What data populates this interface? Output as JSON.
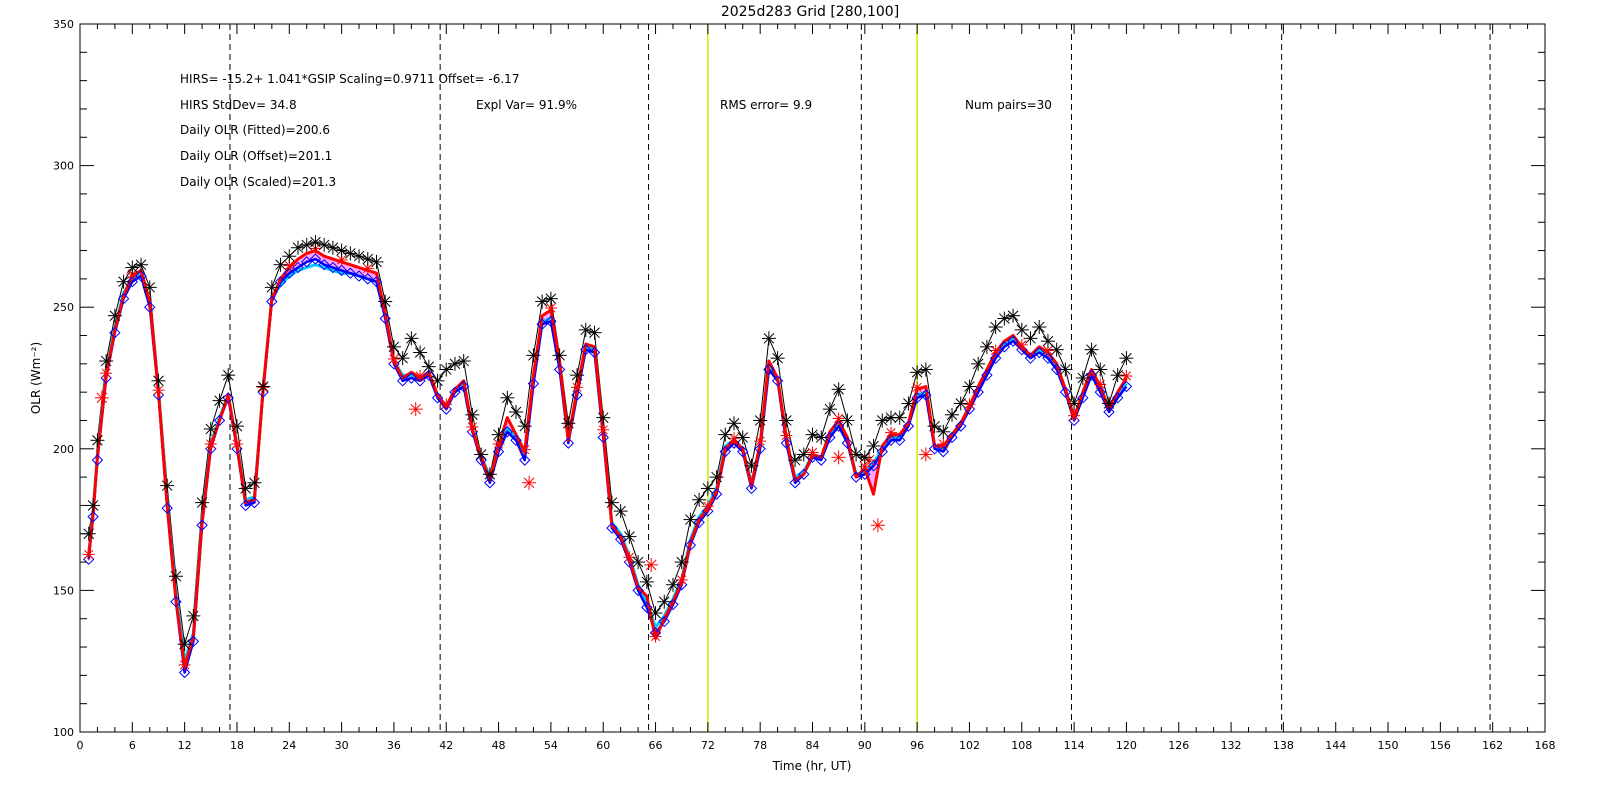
{
  "title": "2025d283 Grid [280,100]",
  "annotations": {
    "hirs_fit": "HIRS=  -15.2+  1.041*GSIP  Scaling=0.9711  Offset= -6.17",
    "hirs_stddev": "HIRS StdDev= 34.8",
    "expl_var": "Expl Var= 91.9%",
    "rms_error": "RMS error=  9.9",
    "num_pairs": "Num pairs=30",
    "daily_fitted": "Daily OLR (Fitted)=200.6",
    "daily_offset": "Daily OLR (Offset)=201.1",
    "daily_scaled": "Daily OLR (Scaled)=201.3"
  },
  "colors": {
    "hirs": "#000000",
    "gsip_scaled": "#0000ff",
    "gsip_offset": "#00ccff",
    "gsip_fitted": "#ff0000",
    "scaled_band": "#ff00ff",
    "reference_line": "#c8f000"
  },
  "chart_data": {
    "type": "line",
    "title": "2025d283 Grid [280,100]",
    "xlabel": "Time (hr, UT)",
    "ylabel": "OLR (Wm⁻²)",
    "xlim": [
      0,
      168
    ],
    "ylim": [
      100,
      350
    ],
    "x_ticks": [
      0,
      6,
      12,
      18,
      24,
      30,
      36,
      42,
      48,
      54,
      60,
      66,
      72,
      78,
      84,
      90,
      96,
      102,
      108,
      114,
      120,
      126,
      132,
      138,
      144,
      150,
      156,
      162,
      168
    ],
    "y_ticks": [
      100,
      150,
      200,
      250,
      300,
      350
    ],
    "dashed_vlines": [
      17.2,
      41.3,
      65.2,
      89.6,
      113.7,
      137.8,
      161.7
    ],
    "green_vlines": [
      72,
      96
    ],
    "x": [
      1,
      1.5,
      2,
      3,
      4,
      5,
      6,
      7,
      8,
      9,
      10,
      11,
      12,
      13,
      14,
      15,
      16,
      17,
      18,
      19,
      20,
      21,
      22,
      23,
      24,
      25,
      26,
      27,
      28,
      29,
      30,
      31,
      32,
      33,
      34,
      35,
      36,
      37,
      38,
      39,
      40,
      41,
      42,
      43,
      44,
      45,
      46,
      47,
      48,
      49,
      50,
      51,
      52,
      53,
      54,
      55,
      56,
      57,
      58,
      59,
      60,
      61,
      62,
      63,
      64,
      65,
      66,
      67,
      68,
      69,
      70,
      71,
      72,
      73,
      74,
      75,
      76,
      77,
      78,
      79,
      80,
      81,
      82,
      83,
      84,
      85,
      86,
      87,
      88,
      89,
      90,
      91,
      92,
      93,
      94,
      95,
      96,
      97,
      98,
      99,
      100,
      101,
      102,
      103,
      104,
      105,
      106,
      107,
      108,
      109,
      110,
      111,
      112,
      113,
      114,
      115,
      116,
      117,
      118,
      119,
      120
    ],
    "series": [
      {
        "name": "HIRS",
        "values": [
          170,
          180,
          203,
          231,
          247,
          259,
          264,
          265,
          257,
          224,
          187,
          155,
          131,
          141,
          181,
          207,
          217,
          226,
          208,
          186,
          188,
          222,
          257,
          265,
          268,
          271,
          272,
          273,
          272,
          271,
          270,
          269,
          268,
          267,
          266,
          252,
          236,
          232,
          239,
          234,
          229,
          224,
          228,
          230,
          231,
          212,
          198,
          191,
          205,
          218,
          213,
          208,
          233,
          252,
          253,
          233,
          209,
          226,
          242,
          241,
          211,
          181,
          178,
          169,
          160,
          153,
          142,
          146,
          152,
          160,
          175,
          182,
          186,
          190,
          205,
          209,
          204,
          194,
          210,
          239,
          232,
          210,
          196,
          198,
          205,
          204,
          214,
          221,
          210,
          198,
          197,
          201,
          210,
          211,
          211,
          216,
          227,
          228,
          208,
          206,
          212,
          216,
          222,
          230,
          236,
          243,
          246,
          247,
          242,
          239,
          243,
          238,
          235,
          228,
          216,
          225,
          235,
          228,
          216,
          226,
          232
        ]
      },
      {
        "name": "GSIP Scaled",
        "values": [
          161,
          176,
          196,
          225,
          241,
          253,
          259,
          261,
          250,
          219,
          179,
          146,
          121,
          132,
          173,
          200,
          210,
          218,
          200,
          180,
          181,
          220,
          252,
          259,
          262,
          264,
          266,
          267,
          265,
          264,
          263,
          262,
          261,
          260,
          259,
          246,
          230,
          224,
          225,
          224,
          226,
          218,
          214,
          220,
          222,
          206,
          196,
          188,
          199,
          206,
          203,
          196,
          223,
          244,
          245,
          228,
          202,
          219,
          235,
          234,
          204,
          172,
          168,
          160,
          150,
          144,
          135,
          139,
          145,
          152,
          166,
          174,
          178,
          184,
          199,
          202,
          199,
          186,
          200,
          228,
          224,
          202,
          188,
          191,
          197,
          196,
          204,
          208,
          202,
          190,
          191,
          194,
          199,
          203,
          203,
          208,
          218,
          219,
          200,
          199,
          204,
          208,
          214,
          220,
          226,
          232,
          236,
          238,
          235,
          232,
          234,
          232,
          228,
          220,
          210,
          218,
          226,
          220,
          213,
          218,
          222
        ]
      },
      {
        "name": "GSIP Offset",
        "values": [
          163,
          178,
          198,
          227,
          243,
          255,
          260,
          262,
          251,
          221,
          181,
          149,
          125,
          135,
          175,
          202,
          211,
          219,
          201,
          182,
          183,
          221,
          253,
          258,
          261,
          263,
          264,
          265,
          264,
          263,
          262,
          262,
          261,
          260,
          259,
          247,
          231,
          226,
          226,
          225,
          227,
          219,
          215,
          221,
          223,
          207,
          197,
          190,
          200,
          207,
          204,
          197,
          224,
          245,
          246,
          229,
          203,
          220,
          236,
          235,
          205,
          174,
          170,
          162,
          152,
          146,
          137,
          141,
          147,
          154,
          168,
          176,
          180,
          186,
          201,
          203,
          200,
          188,
          201,
          229,
          225,
          203,
          190,
          192,
          198,
          197,
          205,
          209,
          203,
          191,
          192,
          195,
          200,
          204,
          204,
          209,
          219,
          220,
          201,
          200,
          205,
          209,
          215,
          221,
          227,
          233,
          237,
          239,
          236,
          233,
          235,
          233,
          229,
          221,
          211,
          219,
          227,
          221,
          214,
          219,
          223
        ]
      },
      {
        "name": "GSIP Fitted",
        "values": [
          162,
          177,
          197,
          226,
          242,
          254,
          261,
          263,
          252,
          220,
          180,
          147,
          123,
          134,
          174,
          201,
          210,
          219,
          201,
          181,
          182,
          221,
          253,
          260,
          264,
          267,
          269,
          270,
          268,
          267,
          266,
          265,
          264,
          263,
          262,
          248,
          231,
          225,
          227,
          225,
          227,
          219,
          215,
          221,
          224,
          207,
          197,
          189,
          201,
          211,
          205,
          199,
          226,
          247,
          249,
          231,
          203,
          221,
          237,
          236,
          206,
          173,
          169,
          161,
          151,
          148,
          133,
          140,
          146,
          153,
          167,
          175,
          179,
          185,
          200,
          203,
          200,
          187,
          202,
          231,
          225,
          204,
          189,
          191,
          198,
          197,
          206,
          210,
          204,
          190,
          193,
          184,
          201,
          205,
          205,
          209,
          221,
          222,
          201,
          201,
          205,
          209,
          215,
          222,
          228,
          234,
          238,
          240,
          236,
          233,
          236,
          234,
          230,
          221,
          211,
          220,
          228,
          222,
          214,
          220,
          225
        ]
      }
    ],
    "red_outliers": [
      {
        "x": 2.5,
        "y": 218
      },
      {
        "x": 38.5,
        "y": 214
      },
      {
        "x": 51.5,
        "y": 188
      },
      {
        "x": 65.5,
        "y": 159
      },
      {
        "x": 91.5,
        "y": 173
      },
      {
        "x": 90.5,
        "y": 196
      },
      {
        "x": 87,
        "y": 197
      },
      {
        "x": 97,
        "y": 198
      }
    ]
  }
}
